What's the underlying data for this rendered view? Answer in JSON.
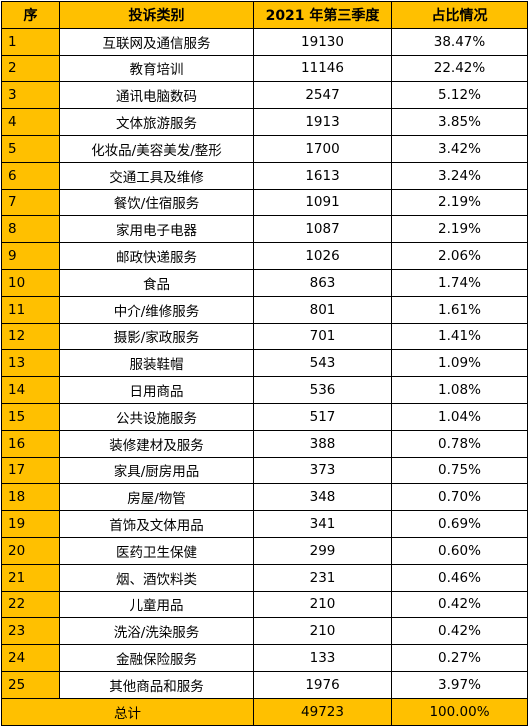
{
  "headers": {
    "index": "序",
    "category": "投诉类别",
    "count": "2021 年第三季度",
    "share": "占比情况"
  },
  "rows": [
    {
      "index": "1",
      "category": "互联网及通信服务",
      "count": "19130",
      "share": "38.47%"
    },
    {
      "index": "2",
      "category": "教育培训",
      "count": "11146",
      "share": "22.42%"
    },
    {
      "index": "3",
      "category": "通讯电脑数码",
      "count": "2547",
      "share": "5.12%"
    },
    {
      "index": "4",
      "category": "文体旅游服务",
      "count": "1913",
      "share": "3.85%"
    },
    {
      "index": "5",
      "category": "化妆品/美容美发/整形",
      "count": "1700",
      "share": "3.42%"
    },
    {
      "index": "6",
      "category": "交通工具及维修",
      "count": "1613",
      "share": "3.24%"
    },
    {
      "index": "7",
      "category": "餐饮/住宿服务",
      "count": "1091",
      "share": "2.19%"
    },
    {
      "index": "8",
      "category": "家用电子电器",
      "count": "1087",
      "share": "2.19%"
    },
    {
      "index": "9",
      "category": "邮政快递服务",
      "count": "1026",
      "share": "2.06%"
    },
    {
      "index": "10",
      "category": "食品",
      "count": "863",
      "share": "1.74%"
    },
    {
      "index": "11",
      "category": "中介/维修服务",
      "count": "801",
      "share": "1.61%"
    },
    {
      "index": "12",
      "category": "摄影/家政服务",
      "count": "701",
      "share": "1.41%"
    },
    {
      "index": "13",
      "category": "服装鞋帽",
      "count": "543",
      "share": "1.09%"
    },
    {
      "index": "14",
      "category": "日用商品",
      "count": "536",
      "share": "1.08%"
    },
    {
      "index": "15",
      "category": "公共设施服务",
      "count": "517",
      "share": "1.04%"
    },
    {
      "index": "16",
      "category": "装修建材及服务",
      "count": "388",
      "share": "0.78%"
    },
    {
      "index": "17",
      "category": "家具/厨房用品",
      "count": "373",
      "share": "0.75%"
    },
    {
      "index": "18",
      "category": "房屋/物管",
      "count": "348",
      "share": "0.70%"
    },
    {
      "index": "19",
      "category": "首饰及文体用品",
      "count": "341",
      "share": "0.69%"
    },
    {
      "index": "20",
      "category": "医药卫生保健",
      "count": "299",
      "share": "0.60%"
    },
    {
      "index": "21",
      "category": "烟、酒饮料类",
      "count": "231",
      "share": "0.46%"
    },
    {
      "index": "22",
      "category": "儿童用品",
      "count": "210",
      "share": "0.42%"
    },
    {
      "index": "23",
      "category": "洗浴/洗染服务",
      "count": "210",
      "share": "0.42%"
    },
    {
      "index": "24",
      "category": "金融保险服务",
      "count": "133",
      "share": "0.27%"
    },
    {
      "index": "25",
      "category": "其他商品和服务",
      "count": "1976",
      "share": "3.97%"
    }
  ],
  "total": {
    "label": "总计",
    "count": "49723",
    "share": "100.00%"
  },
  "colors": {
    "header_bg": "#FFC000",
    "border": "#000000"
  }
}
